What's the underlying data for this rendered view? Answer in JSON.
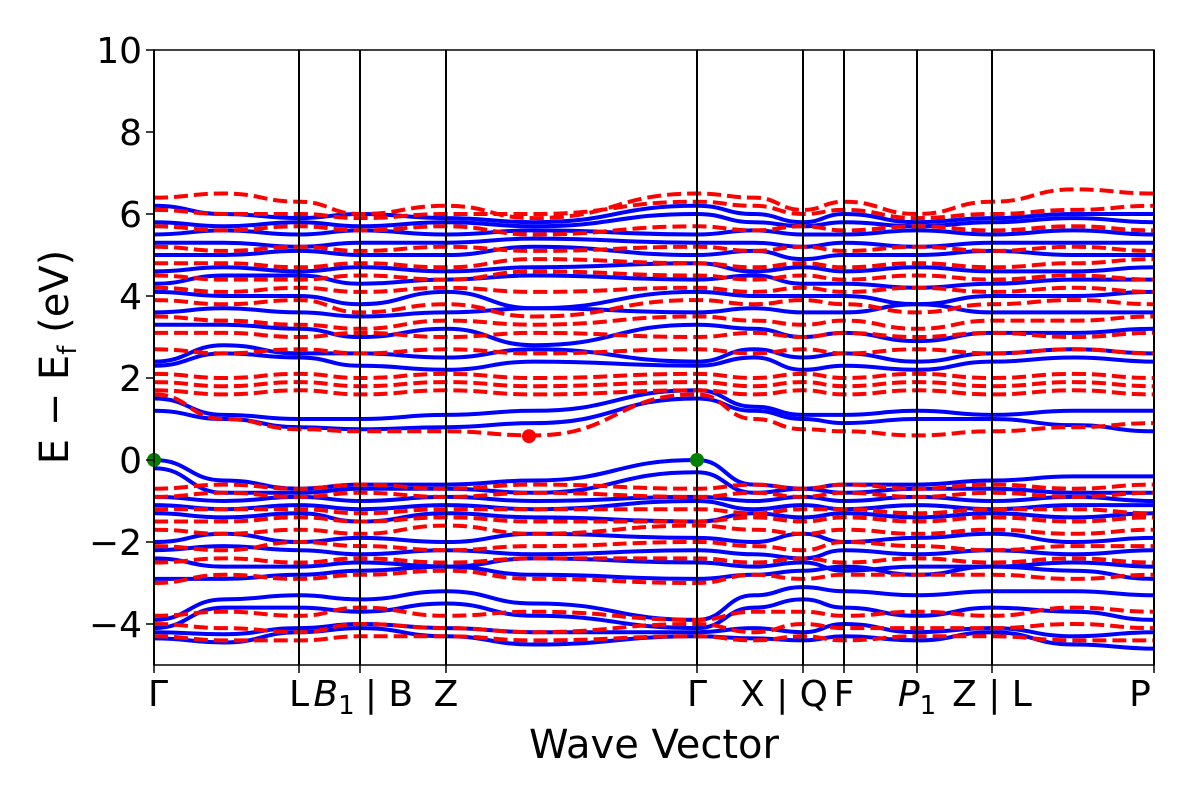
{
  "chart_data": {
    "type": "line",
    "title": "",
    "xlabel": "Wave Vector",
    "ylabel": "E − E",
    "ylabel_sub": "f",
    "ylabel_unit": " (eV)",
    "ylim": [
      -5,
      10
    ],
    "yticks": [
      {
        "value": 10,
        "label": "10"
      },
      {
        "value": 8,
        "label": "8"
      },
      {
        "value": 6,
        "label": "6"
      },
      {
        "value": 4,
        "label": "4"
      },
      {
        "value": 2,
        "label": "2"
      },
      {
        "value": 0,
        "label": "0"
      },
      {
        "value": -2,
        "label": "−2"
      },
      {
        "value": -4,
        "label": "−4"
      }
    ],
    "xlim": [
      0,
      1
    ],
    "high_symmetry_x": [
      0,
      0.145,
      0.206,
      0.292,
      0.543,
      0.649,
      0.69,
      0.763,
      0.838,
      1.0
    ],
    "xticks": [
      {
        "x": 0.0,
        "label": "Γ",
        "sub": ""
      },
      {
        "x": 0.145,
        "label": "L",
        "sub": ""
      },
      {
        "x": 0.18,
        "label": "B",
        "sub": "1"
      },
      {
        "x": 0.235,
        "label": "| B",
        "sub": ""
      },
      {
        "x": 0.292,
        "label": "Z",
        "sub": ""
      },
      {
        "x": 0.543,
        "label": "Γ",
        "sub": ""
      },
      {
        "x": 0.63,
        "label": "X | Q",
        "sub": ""
      },
      {
        "x": 0.69,
        "label": "F",
        "sub": ""
      },
      {
        "x": 0.763,
        "label": "P",
        "sub": "1"
      },
      {
        "x": 0.838,
        "label": "Z | L",
        "sub": ""
      },
      {
        "x": 1.0,
        "label": "P",
        "sub": ""
      }
    ],
    "series": [
      {
        "color": "#0000ff",
        "style": "solid",
        "x_nodes": [
          0,
          0.07,
          0.145,
          0.206,
          0.292,
          0.38,
          0.543,
          0.6,
          0.649,
          0.69,
          0.763,
          0.838,
          0.92,
          1.0
        ],
        "bands": [
          [
            -4.35,
            -4.45,
            -4.2,
            -4.1,
            -4.3,
            -4.5,
            -4.3,
            -4.35,
            -4.4,
            -4.3,
            -4.4,
            -4.2,
            -4.5,
            -4.6
          ],
          [
            -4.2,
            -4.25,
            -4.1,
            -4.0,
            -4.1,
            -4.2,
            -4.2,
            -4.1,
            -4.2,
            -4.0,
            -4.2,
            -4.1,
            -4.3,
            -4.2
          ],
          [
            -4.1,
            -3.6,
            -3.6,
            -3.7,
            -3.5,
            -3.8,
            -4.1,
            -3.6,
            -3.4,
            -3.6,
            -3.8,
            -3.6,
            -3.7,
            -3.9
          ],
          [
            -3.9,
            -3.4,
            -3.3,
            -3.4,
            -3.2,
            -3.5,
            -3.9,
            -3.3,
            -3.1,
            -3.2,
            -3.3,
            -3.2,
            -3.2,
            -3.3
          ],
          [
            -2.9,
            -2.9,
            -2.8,
            -2.7,
            -2.6,
            -2.8,
            -2.9,
            -2.8,
            -2.7,
            -2.6,
            -2.8,
            -2.6,
            -2.7,
            -2.9
          ],
          [
            -2.4,
            -2.6,
            -2.6,
            -2.5,
            -2.6,
            -2.4,
            -2.5,
            -2.6,
            -2.5,
            -2.7,
            -2.6,
            -2.6,
            -2.5,
            -2.6
          ],
          [
            -2.2,
            -2.1,
            -2.2,
            -2.3,
            -2.2,
            -2.3,
            -2.2,
            -2.3,
            -2.4,
            -2.2,
            -2.3,
            -2.2,
            -2.3,
            -2.2
          ],
          [
            -2.0,
            -1.8,
            -2.0,
            -1.9,
            -2.0,
            -1.8,
            -1.9,
            -2.0,
            -1.8,
            -2.0,
            -1.9,
            -1.8,
            -2.0,
            -1.9
          ],
          [
            -1.3,
            -1.4,
            -1.3,
            -1.5,
            -1.3,
            -1.4,
            -1.5,
            -1.3,
            -1.4,
            -1.3,
            -1.4,
            -1.3,
            -1.4,
            -1.3
          ],
          [
            -1.1,
            -1.2,
            -1.1,
            -1.2,
            -1.1,
            -1.2,
            -1.0,
            -1.2,
            -1.1,
            -1.2,
            -1.1,
            -1.2,
            -1.1,
            -1.1
          ],
          [
            -0.9,
            -1.0,
            -0.9,
            -1.0,
            -0.9,
            -1.0,
            -0.9,
            -1.0,
            -0.9,
            -1.0,
            -0.9,
            -1.0,
            -0.9,
            -1.0
          ],
          [
            -0.2,
            -0.8,
            -0.8,
            -0.7,
            -0.7,
            -0.8,
            -0.3,
            -0.8,
            -0.7,
            -0.8,
            -0.7,
            -0.7,
            -0.8,
            -0.8
          ],
          [
            0.0,
            -0.5,
            -0.7,
            -0.6,
            -0.6,
            -0.5,
            0.0,
            -0.6,
            -0.7,
            -0.6,
            -0.6,
            -0.5,
            -0.4,
            -0.4
          ],
          [
            1.2,
            1.0,
            0.8,
            0.75,
            0.8,
            0.9,
            1.5,
            1.2,
            1.0,
            0.9,
            1.0,
            1.0,
            0.85,
            0.7
          ],
          [
            1.5,
            1.1,
            1.0,
            1.0,
            1.1,
            1.2,
            1.7,
            1.3,
            1.1,
            1.1,
            1.2,
            1.1,
            1.2,
            1.2
          ],
          [
            2.3,
            2.6,
            2.5,
            2.3,
            2.2,
            2.4,
            2.3,
            2.5,
            2.2,
            2.3,
            2.2,
            2.4,
            2.5,
            2.4
          ],
          [
            2.4,
            2.8,
            2.6,
            2.6,
            2.5,
            2.7,
            2.4,
            2.7,
            2.5,
            2.6,
            2.4,
            2.6,
            2.7,
            2.6
          ],
          [
            3.3,
            3.3,
            3.2,
            3.0,
            3.2,
            2.8,
            3.3,
            3.2,
            3.0,
            3.1,
            2.9,
            3.1,
            3.1,
            3.2
          ],
          [
            3.6,
            3.7,
            3.6,
            3.5,
            3.6,
            3.7,
            3.6,
            3.7,
            3.6,
            3.6,
            3.8,
            3.6,
            3.6,
            3.6
          ],
          [
            4.1,
            4.0,
            4.0,
            3.8,
            4.1,
            3.7,
            4.1,
            4.0,
            4.0,
            4.0,
            3.8,
            4.0,
            4.0,
            4.1
          ],
          [
            4.3,
            4.5,
            4.5,
            4.3,
            4.4,
            4.5,
            4.4,
            4.5,
            4.3,
            4.3,
            4.2,
            4.3,
            4.4,
            4.4
          ],
          [
            4.6,
            4.7,
            4.6,
            4.7,
            4.6,
            4.7,
            4.8,
            4.6,
            4.7,
            4.6,
            4.7,
            4.6,
            4.6,
            4.7
          ],
          [
            5.0,
            5.0,
            5.1,
            5.0,
            5.0,
            5.2,
            5.0,
            5.1,
            4.9,
            5.0,
            5.0,
            5.1,
            5.0,
            5.0
          ],
          [
            5.3,
            5.3,
            5.2,
            5.3,
            5.3,
            5.4,
            5.3,
            5.3,
            5.2,
            5.3,
            5.2,
            5.3,
            5.3,
            5.3
          ],
          [
            5.5,
            5.6,
            5.5,
            5.6,
            5.5,
            5.6,
            5.5,
            5.6,
            5.5,
            5.5,
            5.6,
            5.5,
            5.6,
            5.5
          ],
          [
            5.8,
            5.7,
            5.8,
            5.7,
            5.8,
            5.7,
            6.0,
            5.8,
            5.7,
            5.8,
            5.7,
            5.8,
            5.9,
            5.8
          ],
          [
            6.2,
            6.0,
            5.9,
            6.0,
            5.9,
            5.8,
            6.2,
            6.0,
            5.8,
            6.0,
            5.8,
            5.9,
            6.0,
            6.0
          ]
        ]
      },
      {
        "color": "#ff0000",
        "style": "dashed",
        "x_nodes": [
          0,
          0.07,
          0.145,
          0.206,
          0.292,
          0.38,
          0.543,
          0.6,
          0.649,
          0.69,
          0.763,
          0.838,
          0.92,
          1.0
        ],
        "bands": [
          [
            -4.3,
            -4.4,
            -4.4,
            -4.3,
            -4.3,
            -4.4,
            -4.3,
            -4.4,
            -4.3,
            -4.4,
            -4.3,
            -4.3,
            -4.4,
            -4.4
          ],
          [
            -4.0,
            -4.1,
            -4.2,
            -4.0,
            -4.1,
            -4.2,
            -4.0,
            -4.2,
            -4.0,
            -4.1,
            -4.1,
            -4.1,
            -4.0,
            -4.1
          ],
          [
            -3.8,
            -3.7,
            -3.8,
            -3.6,
            -3.8,
            -3.7,
            -3.9,
            -3.7,
            -3.7,
            -3.8,
            -3.7,
            -3.8,
            -3.6,
            -3.7
          ],
          [
            -3.0,
            -2.8,
            -2.9,
            -2.8,
            -2.7,
            -2.9,
            -3.0,
            -2.8,
            -2.9,
            -2.8,
            -2.8,
            -2.8,
            -2.9,
            -2.8
          ],
          [
            -2.5,
            -2.4,
            -2.5,
            -2.4,
            -2.5,
            -2.4,
            -2.4,
            -2.5,
            -2.4,
            -2.5,
            -2.4,
            -2.5,
            -2.4,
            -2.5
          ],
          [
            -2.1,
            -2.2,
            -2.0,
            -2.1,
            -2.2,
            -2.1,
            -2.0,
            -2.1,
            -2.2,
            -2.0,
            -2.1,
            -2.2,
            -2.1,
            -2.1
          ],
          [
            -1.7,
            -1.8,
            -1.7,
            -1.8,
            -1.6,
            -1.8,
            -1.6,
            -1.7,
            -1.8,
            -1.7,
            -1.8,
            -1.7,
            -1.8,
            -1.7
          ],
          [
            -1.5,
            -1.5,
            -1.4,
            -1.5,
            -1.4,
            -1.5,
            -1.5,
            -1.4,
            -1.5,
            -1.4,
            -1.5,
            -1.4,
            -1.5,
            -1.4
          ],
          [
            -1.2,
            -1.2,
            -1.2,
            -1.3,
            -1.2,
            -1.2,
            -1.2,
            -1.3,
            -1.2,
            -1.2,
            -1.3,
            -1.2,
            -1.2,
            -1.3
          ],
          [
            -0.9,
            -0.8,
            -0.9,
            -0.8,
            -0.9,
            -0.8,
            -0.9,
            -0.8,
            -0.9,
            -0.8,
            -0.9,
            -0.8,
            -0.9,
            -0.8
          ],
          [
            -0.7,
            -0.6,
            -0.7,
            -0.6,
            -0.7,
            -0.6,
            -0.7,
            -0.6,
            -0.7,
            -0.6,
            -0.7,
            -0.6,
            -0.7,
            -0.6
          ],
          [
            1.6,
            1.0,
            0.75,
            0.7,
            0.7,
            0.6,
            1.6,
            1.0,
            0.75,
            0.7,
            0.6,
            0.7,
            0.8,
            0.9
          ],
          [
            1.7,
            1.6,
            1.7,
            1.6,
            1.7,
            1.6,
            1.7,
            1.6,
            1.7,
            1.6,
            1.7,
            1.6,
            1.7,
            1.6
          ],
          [
            1.9,
            1.8,
            1.9,
            1.8,
            1.9,
            1.8,
            1.9,
            1.8,
            1.9,
            1.8,
            1.9,
            1.8,
            1.9,
            1.8
          ],
          [
            2.1,
            2.0,
            2.1,
            2.0,
            2.1,
            2.0,
            2.1,
            2.0,
            2.1,
            2.0,
            2.1,
            2.0,
            2.1,
            2.0
          ],
          [
            2.7,
            2.6,
            2.7,
            2.6,
            2.7,
            2.6,
            2.7,
            2.6,
            2.7,
            2.6,
            2.7,
            2.6,
            2.7,
            2.6
          ],
          [
            3.1,
            3.1,
            3.0,
            3.1,
            3.0,
            3.1,
            3.0,
            3.1,
            3.0,
            3.1,
            3.0,
            3.1,
            3.0,
            3.1
          ],
          [
            3.5,
            3.4,
            3.3,
            3.2,
            3.4,
            3.3,
            3.5,
            3.4,
            3.3,
            3.4,
            3.2,
            3.4,
            3.4,
            3.5
          ],
          [
            3.9,
            3.8,
            3.9,
            3.6,
            3.8,
            3.5,
            3.9,
            3.8,
            3.9,
            3.8,
            3.6,
            3.8,
            3.9,
            3.8
          ],
          [
            4.2,
            4.1,
            4.2,
            4.1,
            4.2,
            4.1,
            4.2,
            4.1,
            4.2,
            4.1,
            4.2,
            4.1,
            4.2,
            4.1
          ],
          [
            4.5,
            4.4,
            4.4,
            4.5,
            4.4,
            4.6,
            4.5,
            4.4,
            4.5,
            4.4,
            4.5,
            4.4,
            4.5,
            4.4
          ],
          [
            4.8,
            4.8,
            4.7,
            4.8,
            4.7,
            4.9,
            4.8,
            4.7,
            4.8,
            4.7,
            4.8,
            4.7,
            4.8,
            4.9
          ],
          [
            5.2,
            5.1,
            5.2,
            5.1,
            5.2,
            5.1,
            5.2,
            5.1,
            5.2,
            5.1,
            5.2,
            5.1,
            5.2,
            5.1
          ],
          [
            5.7,
            5.6,
            5.7,
            5.6,
            5.7,
            5.5,
            5.7,
            5.6,
            5.7,
            5.6,
            5.7,
            5.6,
            5.7,
            5.6
          ],
          [
            6.1,
            6.0,
            6.0,
            5.9,
            6.0,
            6.0,
            6.3,
            6.2,
            6.0,
            6.1,
            5.9,
            6.0,
            6.1,
            6.2
          ],
          [
            6.4,
            6.5,
            6.3,
            6.0,
            6.2,
            5.9,
            6.5,
            6.4,
            6.1,
            6.3,
            6.0,
            6.3,
            6.6,
            6.5
          ]
        ]
      }
    ],
    "markers": [
      {
        "x": 0.0,
        "y": 0.0,
        "color": "#008000"
      },
      {
        "x": 0.543,
        "y": 0.0,
        "color": "#008000"
      },
      {
        "x": 0.375,
        "y": 0.58,
        "color": "#ff0000"
      }
    ]
  }
}
